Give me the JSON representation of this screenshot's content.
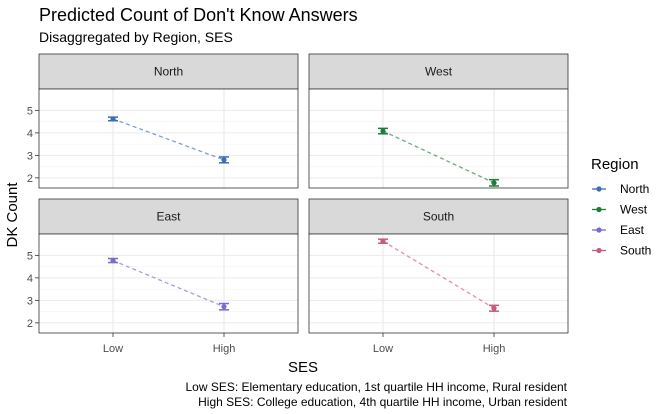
{
  "chart_data": {
    "type": "line",
    "title": "Predicted Count of Don't Know Answers",
    "subtitle": "Disaggregated by Region, SES",
    "xlabel": "SES",
    "ylabel": "DK Count",
    "categories": [
      "Low",
      "High"
    ],
    "yticks": [
      2,
      3,
      4,
      5
    ],
    "ylim": [
      1.55,
      5.95
    ],
    "grid": true,
    "line_style": "dashed",
    "legend": {
      "title": "Region",
      "position": "right"
    },
    "panels": [
      {
        "name": "North",
        "color": "#3a6fb0",
        "values": [
          4.62,
          2.8
        ],
        "ci_low": [
          4.54,
          2.67
        ],
        "ci_high": [
          4.7,
          2.93
        ]
      },
      {
        "name": "West",
        "color": "#1e7d3a",
        "values": [
          4.08,
          1.78
        ],
        "ci_low": [
          3.96,
          1.64
        ],
        "ci_high": [
          4.2,
          1.92
        ]
      },
      {
        "name": "East",
        "color": "#7b68d0",
        "values": [
          4.77,
          2.72
        ],
        "ci_low": [
          4.68,
          2.58
        ],
        "ci_high": [
          4.86,
          2.86
        ]
      },
      {
        "name": "South",
        "color": "#c75b7a",
        "values": [
          5.63,
          2.65
        ],
        "ci_low": [
          5.54,
          2.52
        ],
        "ci_high": [
          5.72,
          2.78
        ]
      }
    ],
    "caption": [
      "Low SES: Elementary education, 1st quartile HH income, Rural resident",
      "High SES: College education, 4th quartile HH income, Urban resident"
    ]
  }
}
